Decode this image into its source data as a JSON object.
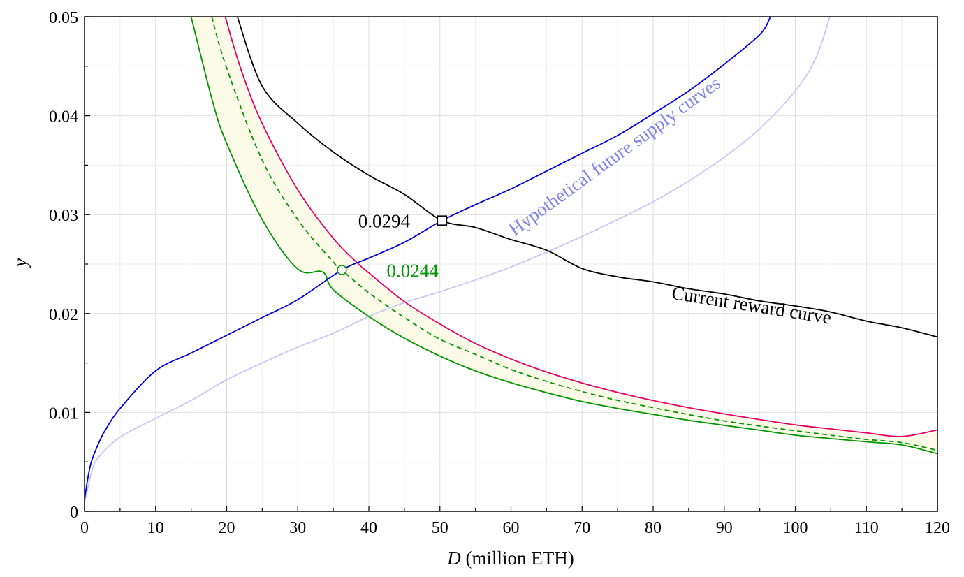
{
  "chart_data": {
    "type": "line",
    "xlabel_var": "D",
    "xlabel_rest": " (million ETH)",
    "ylabel": "y",
    "xlim": [
      0,
      120
    ],
    "ylim": [
      0,
      0.05
    ],
    "x_ticks": [
      0,
      10,
      20,
      30,
      40,
      50,
      60,
      70,
      80,
      90,
      100,
      110,
      120
    ],
    "x_tick_labels": [
      "0",
      "10",
      "20",
      "30",
      "40",
      "50",
      "60",
      "70",
      "80",
      "90",
      "100",
      "110",
      "120"
    ],
    "y_ticks": [
      0,
      0.01,
      0.02,
      0.03,
      0.04,
      0.05
    ],
    "y_tick_labels": [
      "0",
      "0.01",
      "0.02",
      "0.03",
      "0.04",
      "0.05"
    ],
    "grid": true,
    "series": [
      {
        "name": "Current reward curve",
        "color": "#000000",
        "style": "solid",
        "x": [
          21.5,
          25,
          30,
          35,
          40,
          45,
          50.3,
          55,
          60,
          65,
          70,
          75,
          80,
          85,
          90,
          95,
          100,
          105,
          110,
          115,
          120
        ],
        "y": [
          0.05,
          0.04298,
          0.03924,
          0.03633,
          0.03398,
          0.03204,
          0.0294,
          0.0287,
          0.02748,
          0.0264,
          0.02455,
          0.02371,
          0.0232,
          0.0225,
          0.02197,
          0.02127,
          0.02076,
          0.02015,
          0.01923,
          0.01856,
          0.01763
        ]
      },
      {
        "color": "#e8006a",
        "style": "solid",
        "x": [
          19.8,
          22,
          25,
          30,
          35,
          38.4,
          40,
          45,
          50,
          55,
          60,
          65,
          70,
          75,
          80,
          85,
          90,
          95,
          100,
          105,
          110,
          115,
          120
        ],
        "y": [
          0.05,
          0.0447,
          0.0392,
          0.0325,
          0.0276,
          0.0251,
          0.0241,
          0.0212,
          0.01894,
          0.01697,
          0.0154,
          0.01409,
          0.01298,
          0.01203,
          0.0112,
          0.01048,
          0.00985,
          0.00928,
          0.00874,
          0.00833,
          0.00793,
          0.00757,
          0.00823
        ]
      },
      {
        "color": "#009600",
        "style": "dashed",
        "x": [
          17.9,
          20,
          25,
          30,
          35,
          36.2,
          40,
          45,
          50,
          55,
          60,
          65,
          70,
          75,
          80,
          85,
          90,
          95,
          100,
          105,
          110,
          115,
          120
        ],
        "y": [
          0.05,
          0.0448,
          0.0355,
          0.0295,
          0.0252,
          0.0244,
          0.0221,
          0.0196,
          0.0174,
          0.01587,
          0.01435,
          0.01314,
          0.01211,
          0.01122,
          0.01048,
          0.00978,
          0.00914,
          0.00862,
          0.00815,
          0.00769,
          0.00727,
          0.00694,
          0.00616
        ]
      },
      {
        "color": "#009600",
        "style": "solid",
        "x": [
          15,
          18,
          20,
          25,
          30,
          33.5,
          35,
          40,
          45,
          50,
          55,
          60,
          65,
          70,
          75,
          80,
          85,
          90,
          95,
          100,
          105,
          110,
          115,
          120
        ],
        "y": [
          0.05,
          0.0415,
          0.0372,
          0.0295,
          0.0245,
          0.0242,
          0.0224,
          0.0197,
          0.0175,
          0.0157,
          0.0142,
          0.013,
          0.012,
          0.0111,
          0.0104,
          0.0098,
          0.0092,
          0.0087,
          0.0082,
          0.0077,
          0.00735,
          0.00703,
          0.00671,
          0.00583
        ]
      },
      {
        "color": "#0000e0",
        "style": "solid",
        "x": [
          0,
          0.5,
          1,
          2,
          3,
          5,
          10,
          15,
          20,
          25,
          30,
          36.2,
          40,
          45,
          50.3,
          55,
          60,
          65,
          70,
          75,
          80,
          85,
          90,
          95,
          96.5
        ],
        "y": [
          0.0012,
          0.0035,
          0.0051,
          0.0069,
          0.0083,
          0.0104,
          0.0142,
          0.016,
          0.0178,
          0.0196,
          0.0214,
          0.0244,
          0.0256,
          0.0272,
          0.0294,
          0.031,
          0.0326,
          0.0344,
          0.0362,
          0.038,
          0.0402,
          0.0425,
          0.0452,
          0.0482,
          0.05
        ]
      },
      {
        "color": "#c8c8f8",
        "style": "solid",
        "x": [
          0,
          1,
          2,
          5,
          10,
          15,
          20,
          25,
          30,
          35,
          40,
          45,
          50,
          55,
          60,
          65,
          70,
          75,
          80,
          85,
          90,
          95,
          100,
          103,
          105
        ],
        "y": [
          0.0008,
          0.004,
          0.0055,
          0.0075,
          0.0094,
          0.0112,
          0.0133,
          0.015,
          0.0166,
          0.018,
          0.0197,
          0.0211,
          0.0222,
          0.0234,
          0.0247,
          0.0262,
          0.0278,
          0.0295,
          0.0313,
          0.0334,
          0.0358,
          0.0387,
          0.0425,
          0.046,
          0.0504
        ]
      }
    ],
    "band": {
      "fill": "#fbfbe8",
      "upper_series": 1,
      "lower_series": 3
    },
    "markers": [
      {
        "shape": "square",
        "x": 50.3,
        "y": 0.0294,
        "color": "#000000"
      },
      {
        "shape": "circle",
        "x": 36.2,
        "y": 0.0244,
        "color": "#009600"
      }
    ],
    "annotations": [
      {
        "text": "0.0294",
        "x": 38.5,
        "y": 0.0294,
        "color": "#000000",
        "rotate": 0
      },
      {
        "text": "0.0244",
        "x": 42.5,
        "y": 0.0244,
        "color": "#009600",
        "rotate": 0
      },
      {
        "text": "Current reward curve",
        "x": 82.5,
        "y": 0.0222,
        "color": "#000000",
        "rotate": 9
      },
      {
        "text": "Hypothetical future supply curves",
        "x": 60.5,
        "y": 0.0285,
        "color": "#8080e8",
        "rotate": -36
      }
    ]
  }
}
